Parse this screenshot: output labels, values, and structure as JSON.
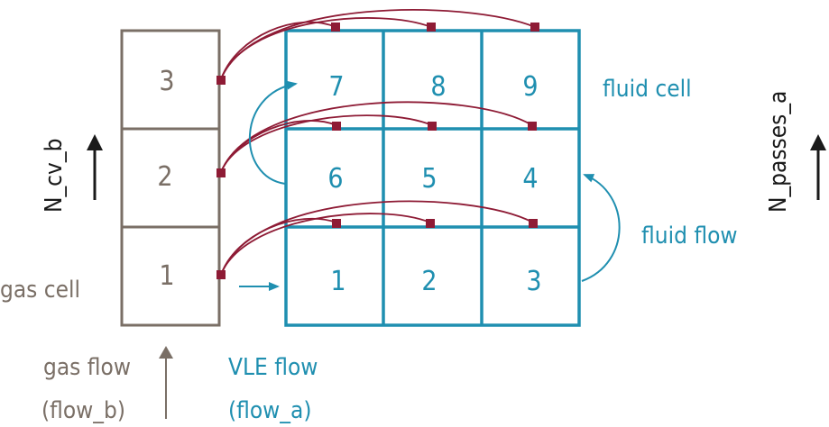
{
  "colors": {
    "gas": "#7a6f66",
    "fluid": "#1f8fb0",
    "link": "#8e1b35"
  },
  "gas_cells": [
    "1",
    "2",
    "3"
  ],
  "fluid_cells": {
    "row1": [
      "1",
      "2",
      "3"
    ],
    "row2": [
      "6",
      "5",
      "4"
    ],
    "row3": [
      "7",
      "8",
      "9"
    ]
  },
  "labels": {
    "gas_cell": "gas cell",
    "fluid_cell": "fluid cell",
    "fluid_flow": "fluid flow",
    "gas_flow": "gas flow",
    "gas_flow_var": "(flow_b)",
    "vle_flow": "VLE flow",
    "vle_flow_var": "(flow_a)",
    "n_cv_b": "N_cv_b",
    "n_passes_a": "N_passes_a"
  },
  "icons": {
    "gas_flow_arrow": "arrow-up-icon",
    "n_cv_b_arrow": "arrow-up-icon",
    "n_passes_a_arrow": "arrow-up-icon"
  }
}
